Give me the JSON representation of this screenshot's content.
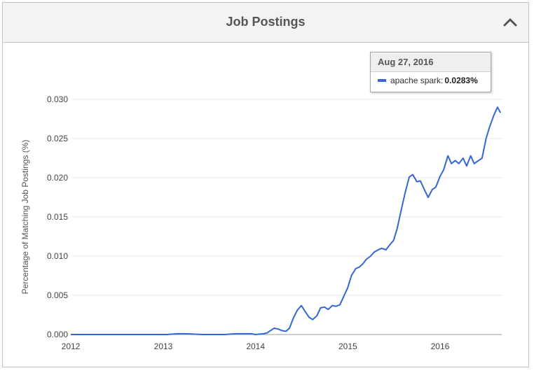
{
  "panel": {
    "title": "Job Postings",
    "collapse_icon": "chevron-up-icon"
  },
  "tooltip": {
    "date": "Aug 27, 2016",
    "series_label": "apache spark:",
    "value_text": "0.0283%"
  },
  "colors": {
    "series": "#3366d6",
    "grid": "#e8e8e8",
    "axis_text": "#444444"
  },
  "chart_data": {
    "type": "line",
    "title": "",
    "xlabel": "",
    "ylabel": "Percentage of Matching Job Postings (%)",
    "xlim": [
      "2012-01-01",
      "2016-09-01"
    ],
    "ylim": [
      0,
      0.03
    ],
    "yticks": [
      "0.000",
      "0.005",
      "0.010",
      "0.015",
      "0.020",
      "0.025",
      "0.030"
    ],
    "xticks": [
      "2012",
      "2013",
      "2014",
      "2015",
      "2016"
    ],
    "grid": true,
    "series": [
      {
        "name": "apache spark",
        "x": [
          "2012-01-01",
          "2012-06-01",
          "2012-12-01",
          "2013-01-15",
          "2013-03-01",
          "2013-04-01",
          "2013-06-01",
          "2013-09-01",
          "2013-10-15",
          "2013-12-15",
          "2014-01-01",
          "2014-02-01",
          "2014-02-15",
          "2014-03-01",
          "2014-03-15",
          "2014-04-01",
          "2014-04-15",
          "2014-05-01",
          "2014-05-15",
          "2014-06-01",
          "2014-06-15",
          "2014-07-01",
          "2014-07-15",
          "2014-08-01",
          "2014-08-15",
          "2014-09-01",
          "2014-09-15",
          "2014-10-01",
          "2014-10-15",
          "2014-11-01",
          "2014-11-15",
          "2014-12-01",
          "2014-12-15",
          "2015-01-01",
          "2015-01-15",
          "2015-02-01",
          "2015-02-15",
          "2015-03-01",
          "2015-03-15",
          "2015-04-01",
          "2015-04-15",
          "2015-05-01",
          "2015-05-15",
          "2015-06-01",
          "2015-06-15",
          "2015-07-01",
          "2015-07-15",
          "2015-08-01",
          "2015-08-15",
          "2015-09-01",
          "2015-09-15",
          "2015-10-01",
          "2015-10-15",
          "2015-11-01",
          "2015-11-15",
          "2015-12-01",
          "2015-12-15",
          "2016-01-01",
          "2016-01-15",
          "2016-02-01",
          "2016-02-15",
          "2016-03-01",
          "2016-03-15",
          "2016-04-01",
          "2016-04-15",
          "2016-05-01",
          "2016-05-15",
          "2016-06-01",
          "2016-06-15",
          "2016-07-01",
          "2016-07-15",
          "2016-08-01",
          "2016-08-15",
          "2016-08-27"
        ],
        "y": [
          0,
          0,
          0,
          0,
          0.0001,
          0.0001,
          0,
          0,
          0.0001,
          0.0001,
          0,
          0.0001,
          0.0002,
          0.0005,
          0.0008,
          0.0007,
          0.0005,
          0.0004,
          0.0008,
          0.0022,
          0.0031,
          0.0037,
          0.003,
          0.0022,
          0.0019,
          0.0024,
          0.0034,
          0.0035,
          0.0032,
          0.0037,
          0.0036,
          0.0038,
          0.0048,
          0.006,
          0.0075,
          0.0084,
          0.0086,
          0.009,
          0.0096,
          0.01,
          0.0105,
          0.0108,
          0.011,
          0.0108,
          0.0114,
          0.012,
          0.0135,
          0.016,
          0.018,
          0.0201,
          0.0204,
          0.0195,
          0.0196,
          0.0184,
          0.0175,
          0.0185,
          0.0188,
          0.0202,
          0.021,
          0.0228,
          0.0218,
          0.0222,
          0.0218,
          0.0225,
          0.0215,
          0.0228,
          0.0218,
          0.0222,
          0.0225,
          0.025,
          0.0265,
          0.028,
          0.029,
          0.0283
        ]
      }
    ]
  }
}
